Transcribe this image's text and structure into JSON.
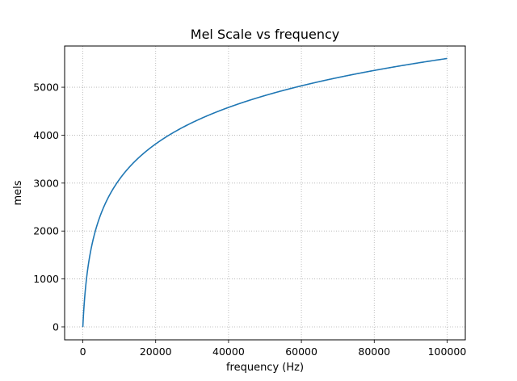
{
  "chart_data": {
    "type": "line",
    "title": "Mel Scale vs frequency",
    "xlabel": "frequency (Hz)",
    "ylabel": "mels",
    "xlim": [
      -5000,
      105000
    ],
    "ylim": [
      -270,
      5860
    ],
    "xticks": [
      0,
      20000,
      40000,
      60000,
      80000,
      100000
    ],
    "yticks": [
      0,
      1000,
      2000,
      3000,
      4000,
      5000
    ],
    "grid": true,
    "grid_style": "dotted",
    "legend": null,
    "series": [
      {
        "formula": "2595 * log10(1 + f / 700)",
        "x_range": [
          0,
          100000
        ],
        "values": [
          {
            "x": 0,
            "y": 0
          },
          {
            "x": 1000,
            "y": 1000
          },
          {
            "x": 5000,
            "y": 2363
          },
          {
            "x": 10000,
            "y": 3073
          },
          {
            "x": 20000,
            "y": 3817
          },
          {
            "x": 40000,
            "y": 4572
          },
          {
            "x": 60000,
            "y": 5016
          },
          {
            "x": 80000,
            "y": 5332
          },
          {
            "x": 100000,
            "y": 5576
          }
        ],
        "color": "#1f77b4"
      }
    ]
  }
}
